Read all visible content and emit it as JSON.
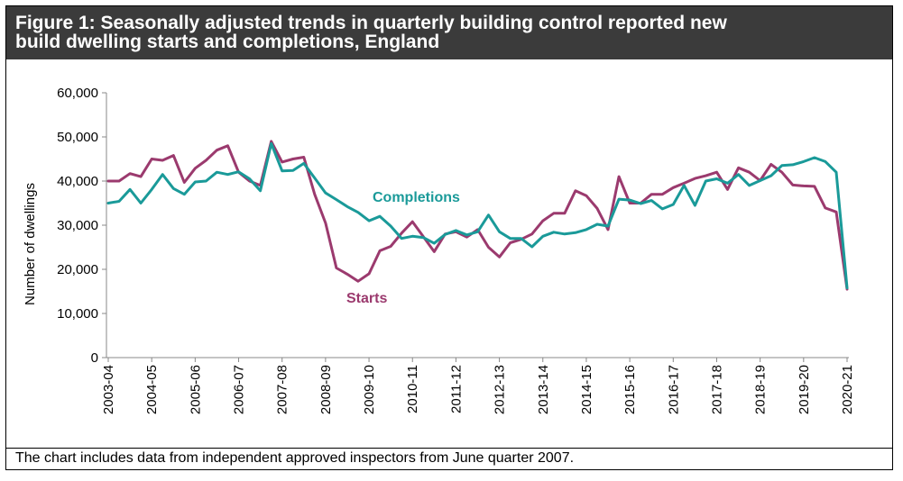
{
  "figure": {
    "title_line1": "Figure 1: Seasonally adjusted trends in quarterly building control reported new",
    "title_line2": "build dwelling starts and completions, England",
    "footnote": "The chart includes data from independent approved inspectors from June quarter 2007."
  },
  "chart_data": {
    "type": "line",
    "title": "Figure 1: Seasonally adjusted trends in quarterly building control reported new build dwelling starts and completions, England",
    "xlabel": "",
    "ylabel": "Number  of dwellings",
    "ylim": [
      0,
      60000
    ],
    "yticks": [
      0,
      10000,
      20000,
      30000,
      40000,
      50000,
      60000
    ],
    "ytick_labels": [
      "0",
      "10,000",
      "20,000",
      "30,000",
      "40,000",
      "50,000",
      "60,000"
    ],
    "x_tick_labels": [
      "2003-04",
      "2004-05",
      "2005-06",
      "2006-07",
      "2007-08",
      "2008-09",
      "2009-10",
      "2010-11",
      "2011-12",
      "2012-13",
      "2013-14",
      "2014-15",
      "2015-16",
      "2016-17",
      "2017-18",
      "2018-19",
      "2019-20",
      "2020-21"
    ],
    "x_quarter_index_range": [
      0,
      69
    ],
    "grid": false,
    "series": [
      {
        "name": "Starts",
        "color": "#9b3a6e",
        "values": [
          40000,
          40000,
          41700,
          41000,
          45000,
          44700,
          45800,
          39700,
          42900,
          44700,
          47000,
          48000,
          42000,
          40000,
          39000,
          49000,
          44300,
          45000,
          45400,
          37000,
          30500,
          20300,
          18900,
          17300,
          19000,
          24200,
          25200,
          28200,
          30800,
          27400,
          24000,
          28000,
          28500,
          27300,
          29000,
          25000,
          22800,
          26000,
          26800,
          28000,
          31000,
          32700,
          32700,
          37800,
          36700,
          33800,
          29000,
          41000,
          35000,
          35000,
          37000,
          37000,
          38500,
          39500,
          40600,
          41200,
          42000,
          38100,
          43000,
          42000,
          40100,
          43800,
          42000,
          39100,
          38900,
          38800,
          33900,
          33000,
          15500
        ]
      },
      {
        "name": "Completions",
        "color": "#1a9a99",
        "values": [
          35000,
          35400,
          38100,
          35000,
          38100,
          41500,
          38300,
          37000,
          39800,
          40000,
          42000,
          41500,
          42100,
          40500,
          37800,
          48500,
          42300,
          42400,
          44000,
          40700,
          37300,
          35800,
          34200,
          32900,
          31000,
          32000,
          29800,
          27000,
          27500,
          27200,
          25900,
          27900,
          28800,
          27800,
          28500,
          32300,
          28500,
          27000,
          27000,
          25100,
          27500,
          28400,
          28000,
          28300,
          29000,
          30200,
          29800,
          35900,
          35700,
          34900,
          35600,
          33700,
          34700,
          39000,
          34500,
          40000,
          40500,
          39500,
          41500,
          39000,
          40100,
          41200,
          43500,
          43700,
          44400,
          45300,
          44400,
          42000,
          15800
        ]
      }
    ]
  }
}
